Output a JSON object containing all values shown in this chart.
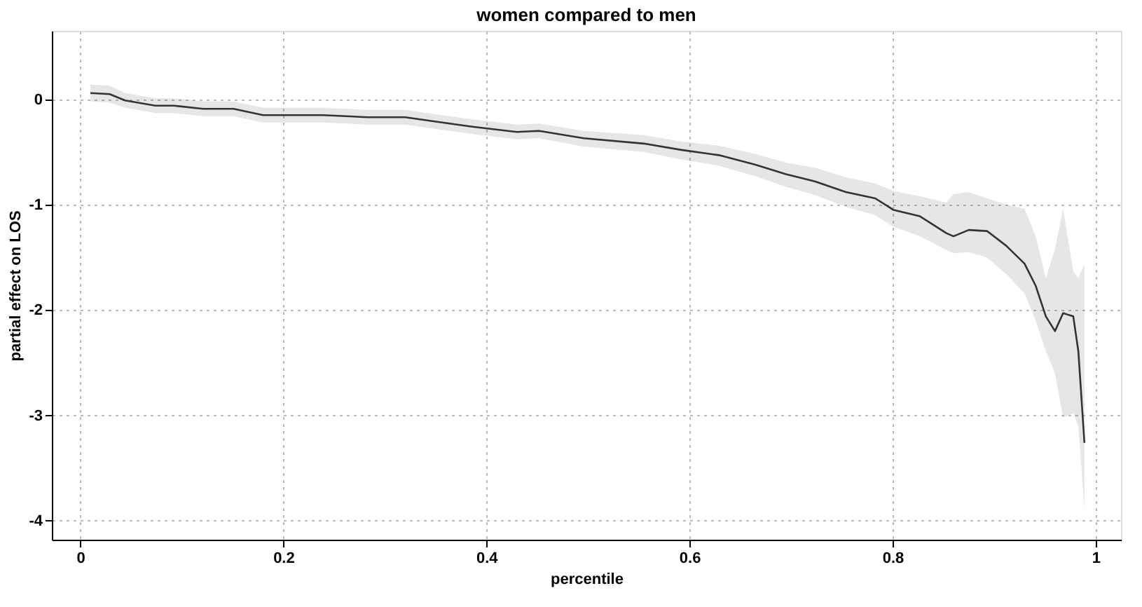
{
  "chart_data": {
    "type": "line",
    "title": "women compared to men",
    "xlabel": "percentile",
    "ylabel": "partial effect on LOS",
    "xlim": [
      -0.028,
      1.025
    ],
    "ylim": [
      -4.18,
      0.65
    ],
    "xticks": [
      0,
      0.2,
      0.4,
      0.6,
      0.8,
      1
    ],
    "yticks": [
      -4,
      -3,
      -2,
      -1,
      0
    ],
    "grid": true,
    "line_style": "solid",
    "series": [
      {
        "color": "#333333",
        "x": [
          0.01,
          0.029,
          0.044,
          0.074,
          0.092,
          0.121,
          0.151,
          0.18,
          0.239,
          0.283,
          0.32,
          0.349,
          0.386,
          0.43,
          0.452,
          0.496,
          0.555,
          0.592,
          0.629,
          0.665,
          0.695,
          0.724,
          0.754,
          0.783,
          0.801,
          0.827,
          0.853,
          0.86,
          0.875,
          0.893,
          0.912,
          0.93,
          0.941,
          0.951,
          0.96,
          0.968,
          0.978,
          0.983,
          0.989
        ],
        "values": [
          0.06,
          0.05,
          -0.01,
          -0.06,
          -0.06,
          -0.09,
          -0.09,
          -0.15,
          -0.15,
          -0.17,
          -0.17,
          -0.21,
          -0.26,
          -0.31,
          -0.3,
          -0.37,
          -0.42,
          -0.48,
          -0.53,
          -0.62,
          -0.71,
          -0.78,
          -0.88,
          -0.94,
          -1.05,
          -1.11,
          -1.27,
          -1.3,
          -1.24,
          -1.25,
          -1.39,
          -1.56,
          -1.77,
          -2.06,
          -2.2,
          -2.03,
          -2.06,
          -2.39,
          -3.26
        ],
        "lower": [
          -0.02,
          -0.03,
          -0.08,
          -0.13,
          -0.13,
          -0.16,
          -0.16,
          -0.22,
          -0.22,
          -0.24,
          -0.24,
          -0.28,
          -0.33,
          -0.38,
          -0.37,
          -0.45,
          -0.5,
          -0.57,
          -0.63,
          -0.73,
          -0.83,
          -0.91,
          -1.02,
          -1.1,
          -1.21,
          -1.3,
          -1.43,
          -1.46,
          -1.45,
          -1.5,
          -1.66,
          -1.84,
          -2.1,
          -2.39,
          -2.6,
          -3.02,
          -2.98,
          -3.1,
          -3.9
        ],
        "upper": [
          0.14,
          0.13,
          0.06,
          0.01,
          0.01,
          -0.02,
          -0.02,
          -0.08,
          -0.08,
          -0.1,
          -0.1,
          -0.14,
          -0.19,
          -0.24,
          -0.23,
          -0.3,
          -0.34,
          -0.4,
          -0.44,
          -0.52,
          -0.6,
          -0.65,
          -0.74,
          -0.8,
          -0.87,
          -0.92,
          -0.98,
          -0.9,
          -0.88,
          -0.94,
          -1.0,
          -1.04,
          -1.3,
          -1.7,
          -1.42,
          -1.04,
          -1.63,
          -1.7,
          -1.56
        ]
      }
    ]
  }
}
